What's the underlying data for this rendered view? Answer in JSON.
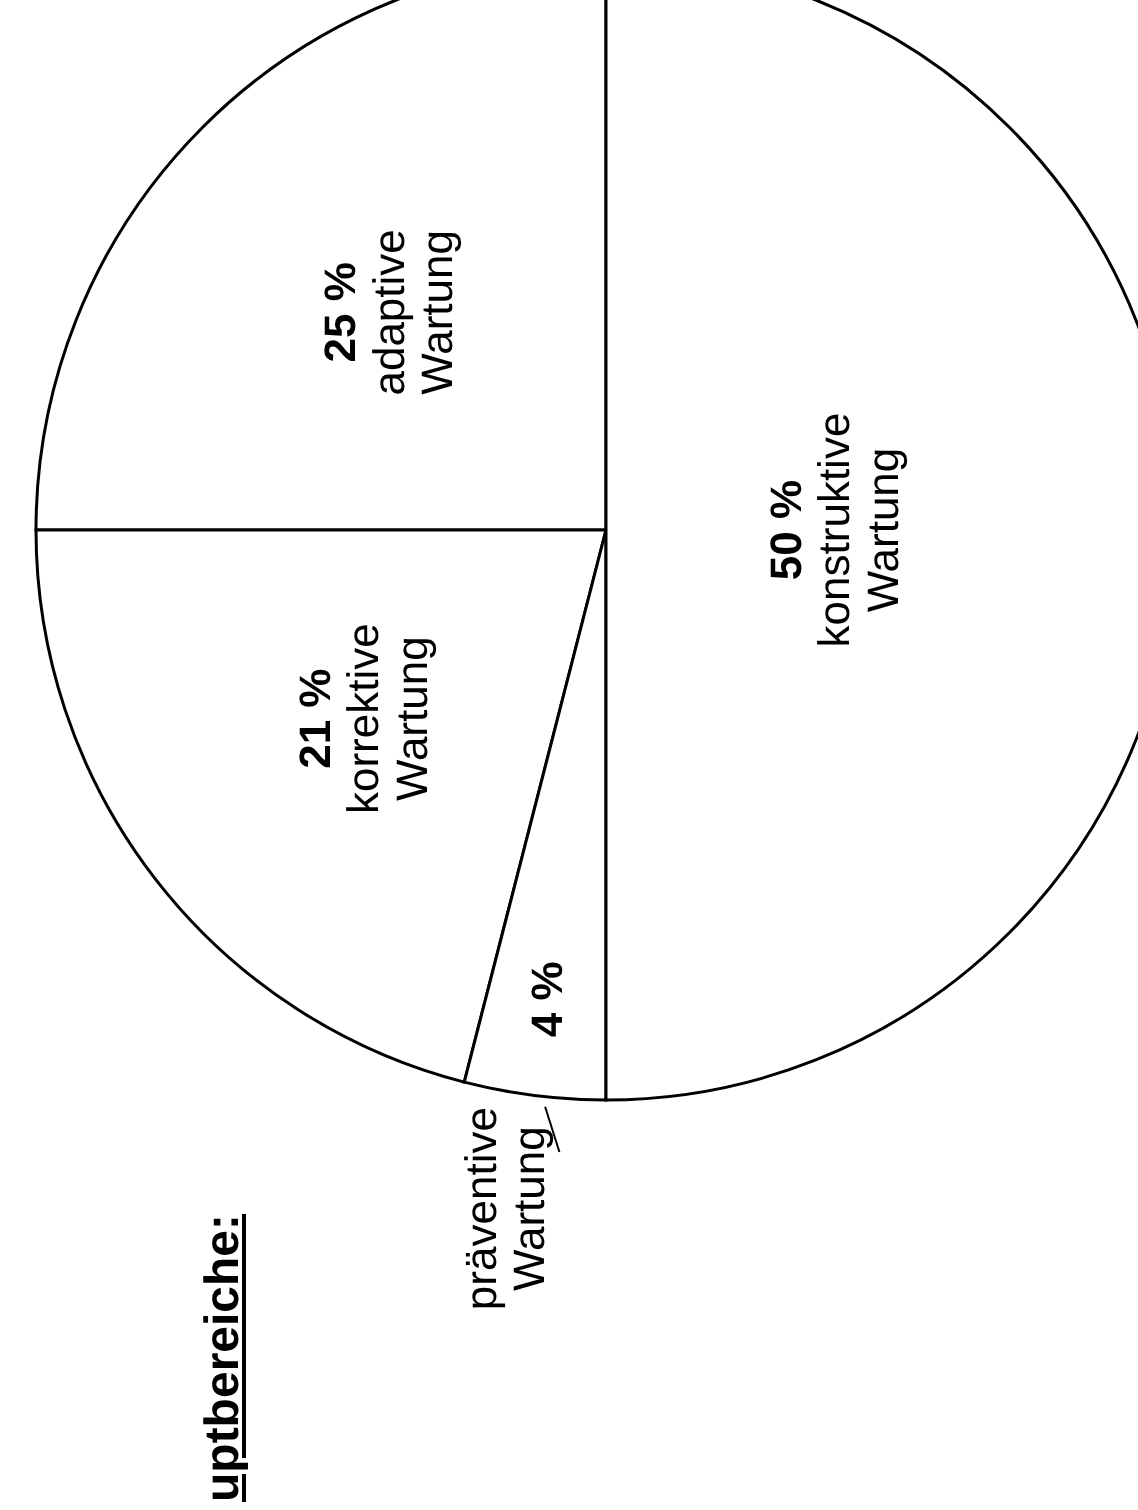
{
  "chart_data": {
    "type": "pie",
    "title": "uptbereiche:",
    "categories": [
      "adaptive Wartung",
      "korrektive Wartung",
      "präventive Wartung",
      "konstruktive Wartung"
    ],
    "values": [
      25,
      21,
      4,
      50
    ],
    "colors": [
      "#ffffff",
      "#ffffff",
      "#ffffff",
      "#ffffff"
    ],
    "value_labels": [
      "25 %",
      "21 %",
      "4 %",
      "50 %"
    ],
    "legend": false
  }
}
